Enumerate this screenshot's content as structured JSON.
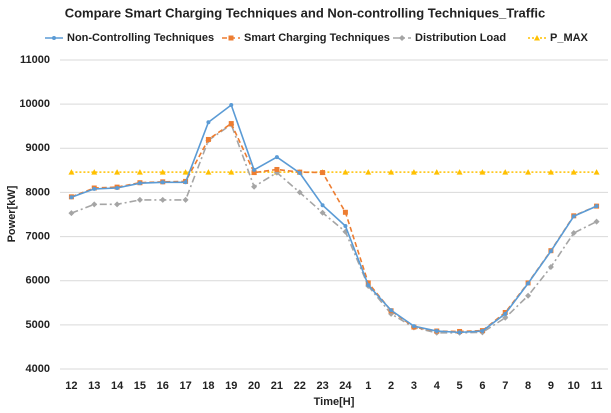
{
  "chart_data": {
    "type": "line",
    "title": "Compare Smart Charging Techniques and Non-controlling Techniques_Traffic",
    "x_label": "Time[H]",
    "y_label": "Power[kW]",
    "categories": [
      "12",
      "13",
      "14",
      "15",
      "16",
      "17",
      "18",
      "19",
      "20",
      "21",
      "22",
      "23",
      "24",
      "1",
      "2",
      "3",
      "4",
      "5",
      "6",
      "7",
      "8",
      "9",
      "10",
      "11"
    ],
    "series": [
      {
        "name": "Non-Controlling Techniques",
        "color": "#5b9bd5",
        "values": [
          7890,
          8080,
          8100,
          8210,
          8230,
          8230,
          9590,
          9980,
          8510,
          8800,
          8440,
          7710,
          7240,
          5900,
          5330,
          4970,
          4860,
          4830,
          4860,
          5250,
          5940,
          6670,
          7460,
          7690
        ]
      },
      {
        "name": "Smart Charging Techniques",
        "color": "#ed7d31",
        "values": [
          7900,
          8100,
          8120,
          8220,
          8240,
          8250,
          9200,
          9560,
          8450,
          8520,
          8460,
          8450,
          7550,
          5950,
          5320,
          4950,
          4860,
          4850,
          4870,
          5280,
          5950,
          6680,
          7470,
          7690
        ]
      },
      {
        "name": "Distribution Load",
        "color": "#a5a5a5",
        "values": [
          7530,
          7730,
          7730,
          7830,
          7830,
          7830,
          9180,
          9540,
          8130,
          8450,
          8000,
          7540,
          7110,
          5880,
          5250,
          4940,
          4820,
          4820,
          4830,
          5160,
          5660,
          6310,
          7080,
          7340
        ]
      },
      {
        "name": "P_MAX",
        "color": "#ffc000",
        "values": [
          8460,
          8460,
          8460,
          8460,
          8460,
          8460,
          8460,
          8460,
          8460,
          8460,
          8460,
          8460,
          8460,
          8460,
          8460,
          8460,
          8460,
          8460,
          8460,
          8460,
          8460,
          8460,
          8460,
          8460
        ]
      }
    ],
    "ylim": [
      4000,
      11000
    ],
    "yticks": [
      4000,
      5000,
      6000,
      7000,
      8000,
      9000,
      10000,
      11000
    ],
    "grid": true
  }
}
